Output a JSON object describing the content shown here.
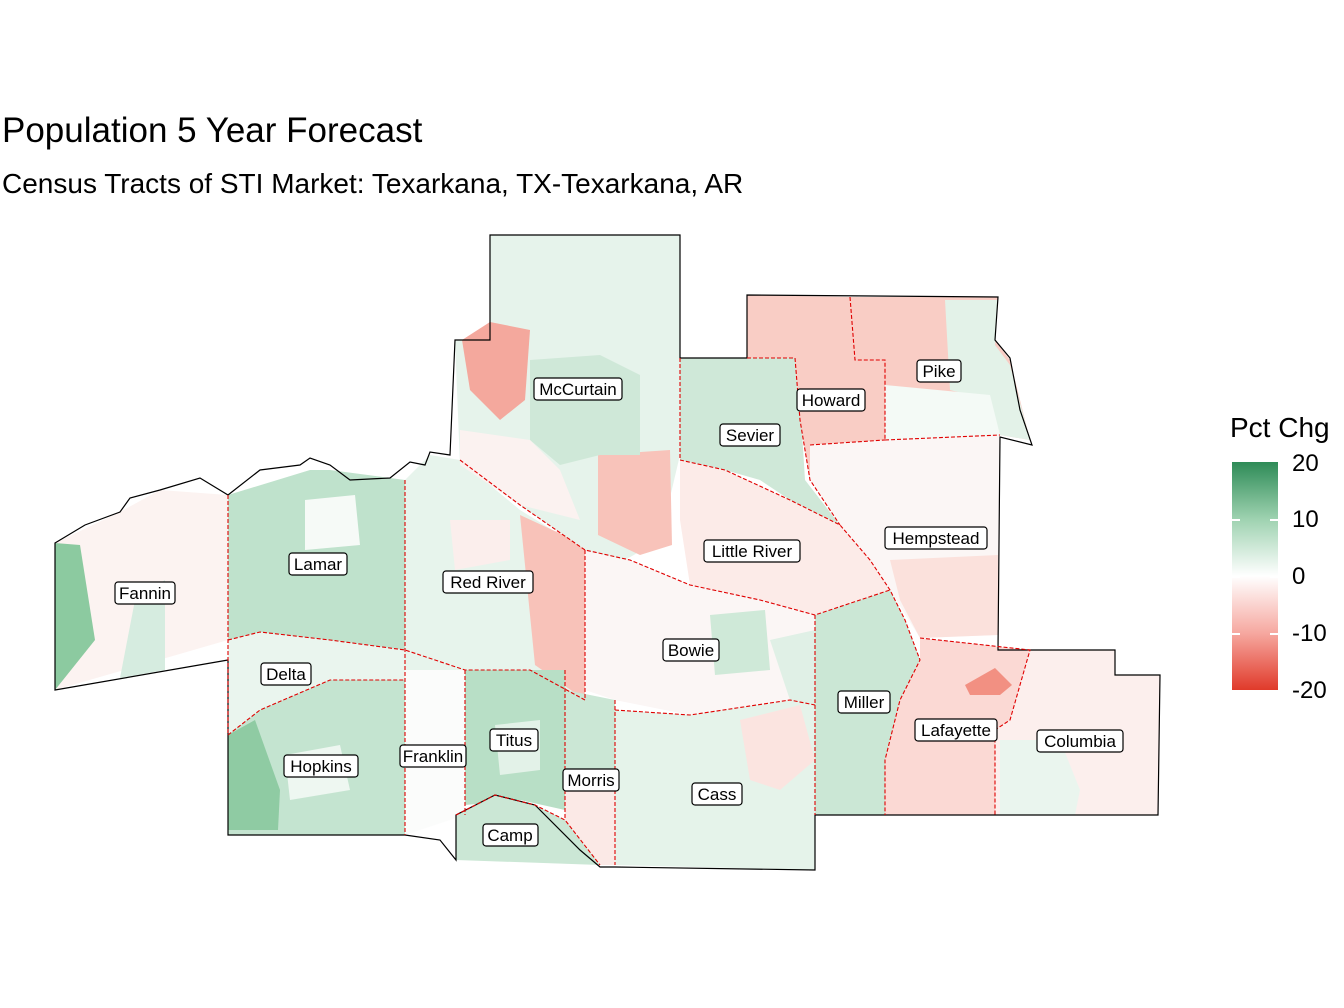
{
  "title": "Population 5 Year Forecast",
  "subtitle": "Census Tracts of STI Market: Texarkana, TX-Texarkana, AR",
  "legend": {
    "title": "Pct Chg",
    "ticks": [
      "20",
      "10",
      "0",
      "-10",
      "-20"
    ],
    "colors": {
      "high": "#2e8b57",
      "mid": "#ffffff",
      "low": "#e03a2a"
    }
  },
  "county_boundary_color": "#e00000",
  "counties": [
    {
      "name": "Fannin",
      "change": 2
    },
    {
      "name": "Lamar",
      "change": 8
    },
    {
      "name": "Delta",
      "change": 3
    },
    {
      "name": "Hopkins",
      "change": 9
    },
    {
      "name": "Franklin",
      "change": 1
    },
    {
      "name": "Red River",
      "change": 3
    },
    {
      "name": "Titus",
      "change": 8
    },
    {
      "name": "Camp",
      "change": 7
    },
    {
      "name": "Morris",
      "change": 5
    },
    {
      "name": "Cass",
      "change": 4
    },
    {
      "name": "Bowie",
      "change": 1
    },
    {
      "name": "McCurtain",
      "change": 4
    },
    {
      "name": "Sevier",
      "change": 7
    },
    {
      "name": "Little River",
      "change": -2
    },
    {
      "name": "Howard",
      "change": -6
    },
    {
      "name": "Pike",
      "change": -5
    },
    {
      "name": "Hempstead",
      "change": -1
    },
    {
      "name": "Miller",
      "change": 6
    },
    {
      "name": "Lafayette",
      "change": -5
    },
    {
      "name": "Columbia",
      "change": -2
    }
  ]
}
